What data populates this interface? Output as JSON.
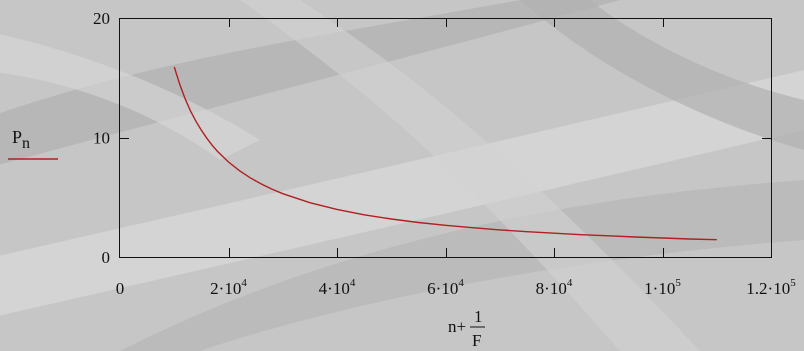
{
  "chart_data": {
    "type": "line",
    "x_tick_labels": [
      {
        "value": 0,
        "text": "0"
      },
      {
        "value": 20000,
        "mant": "2",
        "base": "10",
        "exp": "4"
      },
      {
        "value": 40000,
        "mant": "4",
        "base": "10",
        "exp": "4"
      },
      {
        "value": 60000,
        "mant": "6",
        "base": "10",
        "exp": "4"
      },
      {
        "value": 80000,
        "mant": "8",
        "base": "10",
        "exp": "4"
      },
      {
        "value": 100000,
        "mant": "1",
        "base": "10",
        "exp": "5"
      },
      {
        "value": 120000,
        "mant": "1.2",
        "base": "10",
        "exp": "5"
      }
    ],
    "y_tick_labels": [
      {
        "value": 0,
        "text": "0"
      },
      {
        "value": 10,
        "text": "10"
      },
      {
        "value": 20,
        "text": "20"
      }
    ],
    "xlim": [
      0,
      120000
    ],
    "ylim": [
      0,
      20
    ],
    "xlabel": {
      "prefix": "n+",
      "numerator": "1",
      "denominator": "F"
    },
    "legend": {
      "name": "P",
      "subscript": "n",
      "position": "left"
    },
    "series": [
      {
        "name": "Pn",
        "color": "#b02020",
        "x": [
          10000,
          11000,
          12000,
          13000,
          14000,
          15000,
          16000,
          17000,
          18000,
          20000,
          22000,
          24000,
          26000,
          28000,
          30000,
          35000,
          40000,
          45000,
          50000,
          55000,
          60000,
          65000,
          70000,
          75000,
          80000,
          85000,
          90000,
          95000,
          100000,
          105000,
          110000
        ],
        "y": [
          15.9,
          14.45,
          13.25,
          12.23,
          11.36,
          10.6,
          9.94,
          9.35,
          8.83,
          7.95,
          7.23,
          6.63,
          6.12,
          5.68,
          5.3,
          4.54,
          3.98,
          3.53,
          3.18,
          2.89,
          2.65,
          2.45,
          2.27,
          2.12,
          1.99,
          1.87,
          1.77,
          1.67,
          1.59,
          1.51,
          1.45
        ]
      }
    ],
    "grid": false
  }
}
